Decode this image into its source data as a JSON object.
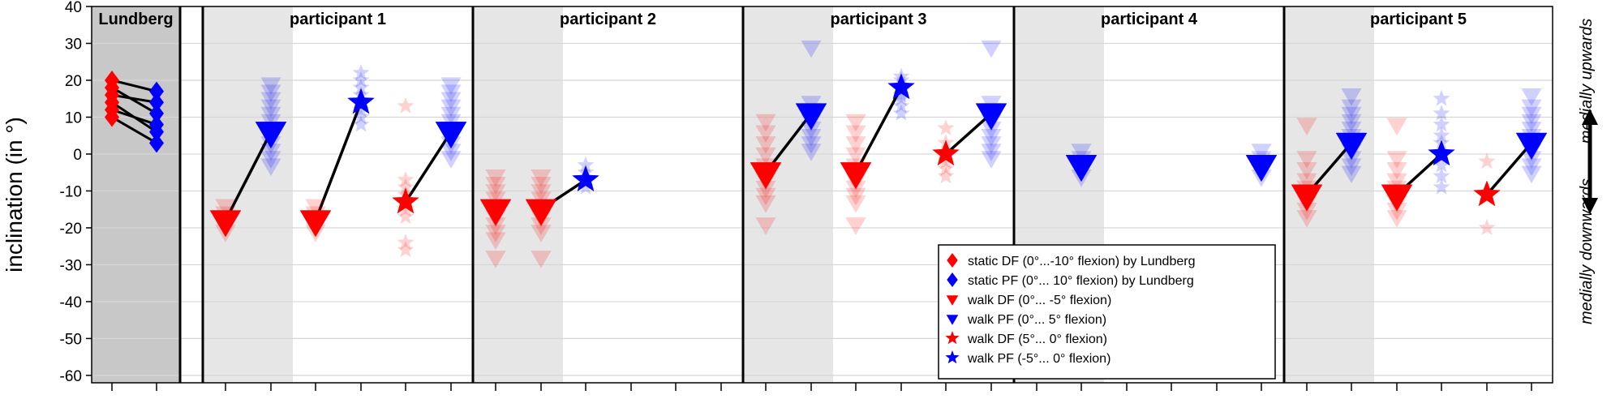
{
  "chart_data": {
    "type": "scatter",
    "ylabel": "inclination (in °)",
    "ylim": [
      -62,
      40
    ],
    "yticks": [
      40,
      30,
      20,
      10,
      0,
      -10,
      -20,
      -30,
      -40,
      -50,
      -60
    ],
    "grid": "horizontal",
    "legend_position": "lower-right",
    "panels": [
      {
        "label": "Lundberg"
      },
      {
        "label": "participant 1"
      },
      {
        "label": "participant 2"
      },
      {
        "label": "participant 3"
      },
      {
        "label": "participant 4"
      },
      {
        "label": "participant 5"
      }
    ],
    "side_labels": {
      "up": "medially upwards",
      "down": "medially downwards"
    },
    "colors": {
      "df": "#ff0000",
      "pf": "#0000ff",
      "line": "#000000"
    },
    "legend": [
      {
        "marker": "diamond",
        "color": "#ff0000",
        "label": "static DF (0°...-10° flexion) by Lundberg"
      },
      {
        "marker": "diamond",
        "color": "#0000ff",
        "label": "static PF (0°... 10° flexion) by Lundberg"
      },
      {
        "marker": "triangle",
        "color": "#ff0000",
        "label": "walk DF (0°... -5° flexion)"
      },
      {
        "marker": "triangle",
        "color": "#0000ff",
        "label": "walk PF (0°...  5° flexion)"
      },
      {
        "marker": "star",
        "color": "#ff0000",
        "label": "walk DF (5°...  0° flexion)"
      },
      {
        "marker": "star",
        "color": "#0000ff",
        "label": "walk PF (-5°... 0° flexion)"
      }
    ],
    "series": [
      {
        "panel": 0,
        "slot": 0,
        "marker": "diamond",
        "color": "df",
        "values": [
          20,
          18,
          16,
          14,
          12,
          10
        ]
      },
      {
        "panel": 0,
        "slot": 1,
        "marker": "diamond",
        "color": "pf",
        "values": [
          17,
          14,
          11,
          8,
          6,
          3
        ]
      },
      {
        "panel": 1,
        "slot": 0,
        "marker": "triangle",
        "color": "df",
        "mean": -18,
        "values": [
          -14,
          -16,
          -19,
          -21
        ]
      },
      {
        "panel": 1,
        "slot": 1,
        "marker": "triangle",
        "color": "pf",
        "mean": 6,
        "values": [
          19,
          17,
          15,
          13,
          11,
          9,
          7,
          5,
          3,
          1,
          -1,
          -3
        ]
      },
      {
        "panel": 1,
        "slot": 2,
        "marker": "triangle",
        "color": "df",
        "mean": -18,
        "values": [
          -14,
          -16,
          -19,
          -21
        ]
      },
      {
        "panel": 1,
        "slot": 3,
        "marker": "star",
        "color": "pf",
        "mean": 14,
        "values": [
          22,
          20,
          18,
          16,
          12,
          10,
          8
        ]
      },
      {
        "panel": 1,
        "slot": 4,
        "marker": "star",
        "color": "df",
        "mean": -13,
        "values": [
          13,
          -7,
          -9,
          -11,
          -15,
          -17,
          -24,
          -26
        ]
      },
      {
        "panel": 1,
        "slot": 5,
        "marker": "triangle",
        "color": "pf",
        "mean": 6,
        "values": [
          19,
          17,
          15,
          13,
          11,
          9,
          7,
          5,
          3,
          1,
          -1
        ]
      },
      {
        "panel": 2,
        "slot": 0,
        "marker": "triangle",
        "color": "df",
        "mean": -15,
        "values": [
          -6,
          -8,
          -10,
          -12,
          -14,
          -17,
          -19,
          -21,
          -23,
          -28
        ]
      },
      {
        "panel": 2,
        "slot": 1,
        "marker": "triangle",
        "color": "df",
        "mean": -15,
        "values": [
          -6,
          -8,
          -10,
          -12,
          -14,
          -17,
          -19,
          -21,
          -28
        ]
      },
      {
        "panel": 2,
        "slot": 2,
        "marker": "star",
        "color": "pf",
        "mean": -7,
        "values": [
          -3,
          -5,
          -9
        ]
      },
      {
        "panel": 3,
        "slot": 0,
        "marker": "triangle",
        "color": "df",
        "mean": -5,
        "values": [
          9,
          6,
          3,
          0,
          -3,
          -7,
          -9,
          -11,
          -13,
          -19
        ]
      },
      {
        "panel": 3,
        "slot": 1,
        "marker": "triangle",
        "color": "pf",
        "mean": 11,
        "values": [
          29,
          14,
          12,
          9,
          7,
          5,
          3,
          1
        ]
      },
      {
        "panel": 3,
        "slot": 2,
        "marker": "triangle",
        "color": "df",
        "mean": -5,
        "values": [
          9,
          6,
          3,
          0,
          -3,
          -7,
          -9,
          -11,
          -13,
          -19
        ]
      },
      {
        "panel": 3,
        "slot": 3,
        "marker": "star",
        "color": "pf",
        "mean": 18,
        "values": [
          21,
          20,
          16,
          15,
          13,
          11
        ]
      },
      {
        "panel": 3,
        "slot": 4,
        "marker": "star",
        "color": "df",
        "mean": 0,
        "values": [
          7,
          3,
          -2,
          -4,
          -6
        ]
      },
      {
        "panel": 3,
        "slot": 5,
        "marker": "triangle",
        "color": "pf",
        "mean": 11,
        "values": [
          29,
          14,
          12,
          9,
          7,
          5,
          3,
          1,
          -1
        ]
      },
      {
        "panel": 4,
        "slot": 1,
        "marker": "triangle",
        "color": "pf",
        "mean": -3,
        "values": [
          1,
          -1,
          -4,
          -6
        ]
      },
      {
        "panel": 4,
        "slot": 5,
        "marker": "triangle",
        "color": "pf",
        "mean": -3,
        "values": [
          1,
          -1,
          -4,
          -6
        ]
      },
      {
        "panel": 5,
        "slot": 0,
        "marker": "triangle",
        "color": "df",
        "mean": -11,
        "values": [
          8,
          -1,
          -4,
          -7,
          -9,
          -13,
          -15,
          -17
        ]
      },
      {
        "panel": 5,
        "slot": 1,
        "marker": "triangle",
        "color": "pf",
        "mean": 3,
        "values": [
          16,
          13,
          11,
          9,
          7,
          5,
          1,
          -1,
          -3,
          -5
        ]
      },
      {
        "panel": 5,
        "slot": 2,
        "marker": "triangle",
        "color": "df",
        "mean": -11,
        "values": [
          8,
          -1,
          -4,
          -7,
          -9,
          -13,
          -15,
          -17
        ]
      },
      {
        "panel": 5,
        "slot": 3,
        "marker": "star",
        "color": "pf",
        "mean": 0,
        "values": [
          15,
          11,
          8,
          5,
          3,
          -3,
          -6,
          -9
        ]
      },
      {
        "panel": 5,
        "slot": 4,
        "marker": "star",
        "color": "df",
        "mean": -11,
        "values": [
          -2,
          -20
        ]
      },
      {
        "panel": 5,
        "slot": 5,
        "marker": "triangle",
        "color": "pf",
        "mean": 3,
        "values": [
          16,
          13,
          11,
          9,
          7,
          5,
          1,
          -1,
          -3,
          -5
        ]
      }
    ],
    "connections": [
      {
        "panel": 0,
        "pairs": [
          [
            20,
            17
          ],
          [
            18,
            11
          ],
          [
            16,
            14
          ],
          [
            14,
            6
          ],
          [
            12,
            8
          ],
          [
            10,
            3
          ]
        ]
      },
      {
        "panel": 1,
        "from_slot": 0,
        "to_slot": 1
      },
      {
        "panel": 1,
        "from_slot": 2,
        "to_slot": 3
      },
      {
        "panel": 1,
        "from_slot": 4,
        "to_slot": 5
      },
      {
        "panel": 2,
        "from_slot": 1,
        "to_slot": 2
      },
      {
        "panel": 3,
        "from_slot": 0,
        "to_slot": 1
      },
      {
        "panel": 3,
        "from_slot": 2,
        "to_slot": 3
      },
      {
        "panel": 3,
        "from_slot": 4,
        "to_slot": 5
      },
      {
        "panel": 5,
        "from_slot": 0,
        "to_slot": 1
      },
      {
        "panel": 5,
        "from_slot": 2,
        "to_slot": 3
      },
      {
        "panel": 5,
        "from_slot": 4,
        "to_slot": 5
      }
    ]
  }
}
